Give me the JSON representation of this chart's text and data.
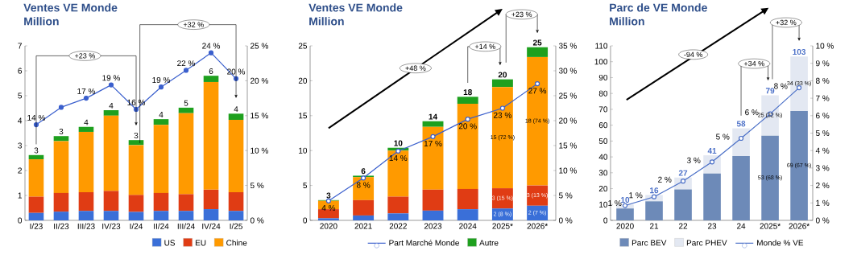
{
  "chart_data": [
    {
      "type": "bar",
      "title": "Ventes VE Monde",
      "subtitle": "Million",
      "stacked": true,
      "legend": "bottom right",
      "marker": "circle",
      "categories": [
        "I/23",
        "II/23",
        "III/23",
        "IV/23",
        "I/24",
        "II/24",
        "III/24",
        "IV/24",
        "I/25"
      ],
      "series": [
        {
          "name": "US",
          "color": "#3a6fd8",
          "values": [
            0.3,
            0.35,
            0.38,
            0.38,
            0.34,
            0.38,
            0.38,
            0.45,
            0.38
          ]
        },
        {
          "name": "EU",
          "color": "#e03c14",
          "values": [
            0.65,
            0.75,
            0.75,
            0.8,
            0.68,
            0.72,
            0.67,
            0.78,
            0.75
          ]
        },
        {
          "name": "Chine",
          "color": "#ff9a00",
          "values": [
            1.5,
            2.08,
            2.42,
            3.02,
            2.0,
            2.73,
            3.25,
            4.32,
            2.9
          ]
        },
        {
          "color": "#1ea01e",
          "values": [
            0.17,
            0.2,
            0.2,
            0.22,
            0.2,
            0.23,
            0.22,
            0.25,
            0.25
          ]
        },
        {
          "type": "line",
          "axis": "y2",
          "color": "#3a5fcd",
          "values": [
            13.7,
            16.2,
            17.5,
            19.4,
            15.9,
            19.1,
            21.5,
            24.0,
            20.3
          ],
          "value_labels": [
            "14 %",
            null,
            "17 %",
            "19 %",
            "16 %",
            "19 %",
            "22 %",
            "24 %",
            "20 %"
          ]
        }
      ],
      "totals": [
        "3",
        "3",
        "4",
        "4",
        "3",
        "4",
        "5",
        "6",
        "4"
      ],
      "ylim": [
        0,
        7
      ],
      "yticks": [
        0,
        1,
        2,
        3,
        4,
        5,
        6,
        7
      ],
      "y2lim": [
        0,
        25
      ],
      "y2ticks": [
        {
          "value": 0,
          "label": "0 %"
        },
        {
          "value": 5,
          "label": "5 %"
        },
        {
          "value": 10,
          "label": "10 %"
        },
        {
          "value": 15,
          "label": "15 %"
        },
        {
          "value": 20,
          "label": "20 %"
        },
        {
          "value": 25,
          "label": "25 %"
        }
      ],
      "annotations": [
        "+23 %",
        "+32 %"
      ]
    },
    {
      "type": "bar",
      "title": "Ventes VE Monde",
      "subtitle": "Million",
      "stacked": true,
      "legend": "bottom",
      "marker": "circle",
      "categories": [
        "2020",
        "2021",
        "2022",
        "2023",
        "2024",
        "2025*",
        "2026*"
      ],
      "series": [
        {
          "name": "Part Marché Monde",
          "type": "line",
          "axis": "y2",
          "color": "#3a5fcd",
          "values": [
            3.9,
            8.5,
            13.9,
            16.8,
            20.3,
            22.5,
            27.4
          ],
          "value_labels": [
            "4 %",
            "8 %",
            "14 %",
            "17 %",
            "20 %",
            "23 %",
            "27 %"
          ]
        },
        {
          "color": "#3a6fd8",
          "values": [
            0.3,
            0.7,
            1.0,
            1.4,
            1.6,
            1.7,
            2.1
          ],
          "value_labels": [
            null,
            null,
            null,
            null,
            null,
            "2 (8 %)",
            "2 (7 %)"
          ]
        },
        {
          "color": "#e03c14",
          "values": [
            1.3,
            2.2,
            2.4,
            3.0,
            2.9,
            2.9,
            2.9
          ],
          "value_labels": [
            null,
            null,
            null,
            null,
            null,
            "3 (15 %)",
            "3 (13 %)"
          ]
        },
        {
          "color": "#ff9a00",
          "values": [
            1.2,
            3.3,
            6.6,
            9.0,
            12.2,
            14.5,
            18.4
          ],
          "value_labels": [
            null,
            null,
            null,
            null,
            null,
            "15 (72 %)",
            "18 (74 %)"
          ]
        },
        {
          "name": "Autre",
          "color": "#1ea01e",
          "values": [
            0.1,
            0.2,
            0.4,
            0.8,
            1.0,
            1.1,
            1.4
          ]
        }
      ],
      "totals": [
        "3",
        "6",
        "10",
        "14",
        "18",
        "20",
        "25"
      ],
      "ylim": [
        0,
        25
      ],
      "yticks": [
        0,
        5,
        10,
        15,
        20,
        25
      ],
      "y2lim": [
        0,
        35
      ],
      "y2ticks": [
        {
          "value": 0,
          "label": "0 %"
        },
        {
          "value": 5,
          "label": "5 %"
        },
        {
          "value": 10,
          "label": "10 %"
        },
        {
          "value": 15,
          "label": "15 %"
        },
        {
          "value": 20,
          "label": "20 %"
        },
        {
          "value": 25,
          "label": "25 %"
        },
        {
          "value": 30,
          "label": "30 %"
        },
        {
          "value": 35,
          "label": "35 %"
        }
      ],
      "annotations": [
        "+48 %",
        "+14 %",
        "+23 %"
      ]
    },
    {
      "type": "bar",
      "title": "Parc de VE Monde",
      "subtitle": "Million",
      "stacked": true,
      "legend": "bottom",
      "marker": "circle",
      "categories": [
        "2020",
        "21",
        "22",
        "23",
        "24",
        "2025*",
        "2026*"
      ],
      "series": [
        {
          "name": "Parc BEV",
          "color": "#6d8ab8",
          "values": [
            7.5,
            12,
            19.5,
            29.5,
            40.5,
            53.4,
            69
          ],
          "value_labels": [
            null,
            null,
            null,
            null,
            null,
            "53 (68 %)",
            "69 (67 %)"
          ]
        },
        {
          "name": "Parc PHEV",
          "color": "#e3e8f2",
          "values": [
            2.5,
            4,
            7.5,
            11.5,
            17.5,
            25.4,
            34.3
          ],
          "value_labels": [
            null,
            null,
            null,
            null,
            null,
            "25 (32 %)",
            "34 (33 %)"
          ]
        },
        {
          "name": "Monde % VE",
          "type": "line",
          "axis": "y2",
          "color": "#4a6fc7",
          "values": [
            0.85,
            1.35,
            2.25,
            3.35,
            4.7,
            6.1,
            7.6
          ],
          "value_labels": [
            "1 %",
            "1 %",
            "2 %",
            "3 %",
            "5 %",
            "6 %",
            "8 %"
          ]
        }
      ],
      "totals": [
        "10",
        "16",
        "27",
        "41",
        "58",
        "79",
        "103"
      ],
      "ylim": [
        0,
        110
      ],
      "yticks": [
        0,
        10,
        20,
        30,
        40,
        50,
        60,
        70,
        80,
        90,
        100,
        110
      ],
      "y2lim": [
        0,
        10
      ],
      "y2ticks": [
        {
          "value": 0,
          "label": "0 %"
        },
        {
          "value": 1,
          "label": "1 %"
        },
        {
          "value": 2,
          "label": "2 %"
        },
        {
          "value": 3,
          "label": "3 %"
        },
        {
          "value": 4,
          "label": "4 %"
        },
        {
          "value": 5,
          "label": "5 %"
        },
        {
          "value": 6,
          "label": "6 %"
        },
        {
          "value": 7,
          "label": "7 %"
        },
        {
          "value": 8,
          "label": "8 %"
        },
        {
          "value": 9,
          "label": "9 %"
        },
        {
          "value": 10,
          "label": "10 %"
        }
      ],
      "annotations": [
        "-94 %",
        "+34 %",
        "+32 %"
      ]
    }
  ]
}
